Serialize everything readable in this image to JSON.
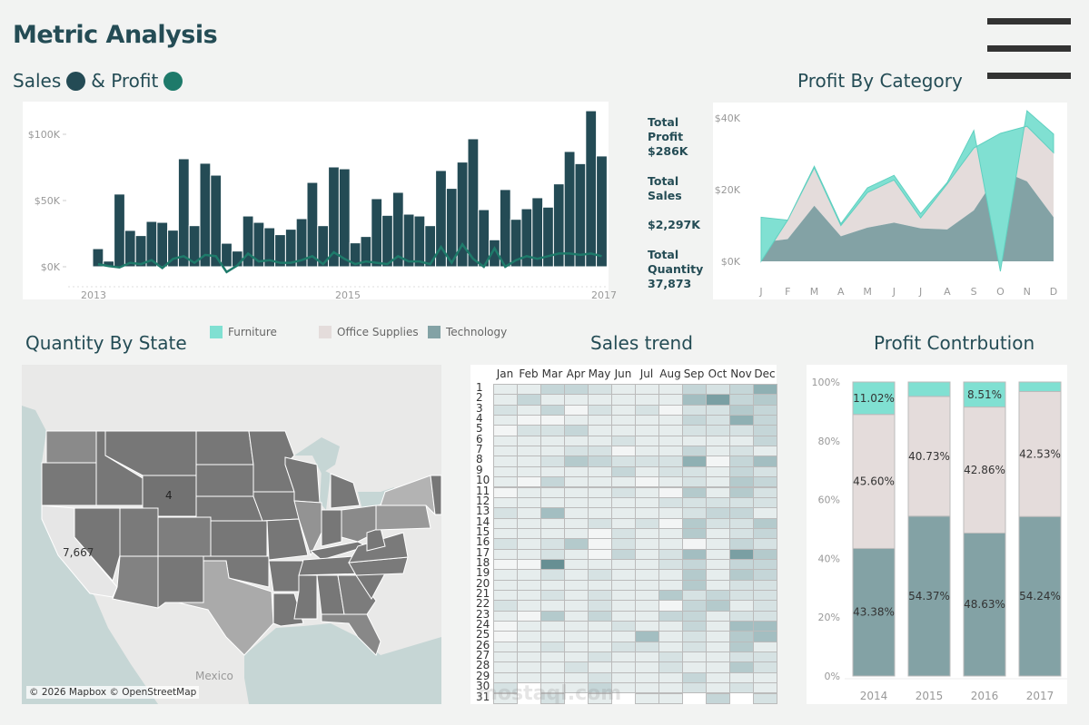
{
  "header": {
    "title": "Metric Analysis",
    "menu_icon": "hamburger-menu-icon"
  },
  "sales_profit": {
    "title_sales": "Sales",
    "title_profit": "& Profit",
    "colors": {
      "sales": "#244b55",
      "profit": "#1e7a6a"
    },
    "chart_data": {
      "type": "bar",
      "y_ticks": [
        "$100K",
        "$50K",
        "$0K"
      ],
      "x_ticks": [
        "2013",
        "2015",
        "2017"
      ],
      "ylim": [
        0,
        120
      ],
      "sales_k": [
        13.7,
        4.3,
        55,
        27.5,
        23.6,
        34.3,
        33.6,
        27.7,
        81.7,
        31.1,
        78.3,
        69.3,
        17.8,
        11.9,
        38.4,
        33.6,
        29.5,
        24.3,
        28.4,
        36.4,
        63.8,
        31.1,
        75.5,
        74.1,
        18.1,
        22.9,
        51.5,
        38.9,
        56.3,
        39.8,
        38.4,
        31.1,
        72.8,
        59.3,
        79.2,
        96.8,
        43.2,
        20.4,
        58.4,
        35.9,
        43.9,
        52.2,
        45.1,
        62.7,
        87.2,
        78,
        118,
        83.8
      ],
      "profit_k": [
        2,
        0.5,
        -0.5,
        3,
        2,
        5,
        -1,
        6,
        8,
        3,
        9,
        8,
        -4,
        1,
        10,
        4,
        5,
        3,
        3,
        5,
        8,
        2,
        11,
        6,
        2,
        4,
        3,
        2,
        8,
        4,
        4,
        2,
        15,
        3,
        17,
        6,
        0,
        14,
        0,
        5,
        8,
        6,
        8,
        10,
        10,
        9,
        10,
        8
      ]
    },
    "kpis": [
      {
        "label": "Total Profit",
        "value": "$286K"
      },
      {
        "label": "Total Sales",
        "value": "$2,297K"
      },
      {
        "label": "Total Quantity",
        "value": "37,873"
      }
    ]
  },
  "profit_by_category": {
    "title": "Profit By Category",
    "chart_data": {
      "type": "area",
      "categories": [
        "J",
        "F",
        "M",
        "A",
        "M",
        "J",
        "J",
        "A",
        "S",
        "O",
        "N",
        "D"
      ],
      "y_ticks": [
        "$40K",
        "$20K",
        "$0K"
      ],
      "ylim": [
        -4,
        44
      ],
      "series": [
        {
          "name": "Technology",
          "values": [
            5.3,
            6.2,
            15.5,
            7,
            9.4,
            10.8,
            9.2,
            8.9,
            14.2,
            25.4,
            22.3,
            12.3
          ]
        },
        {
          "name": "Office Supplies",
          "values": [
            7,
            5.3,
            10.6,
            3,
            9.8,
            11.9,
            2.9,
            12.7,
            17.4,
            10.3,
            15.4,
            18
          ]
        },
        {
          "name": "Furniture",
          "values": [
            -12.3,
            0,
            0.4,
            0.5,
            1.3,
            1.3,
            1.2,
            0.4,
            4.9,
            -38.5,
            4.3,
            5.2
          ]
        }
      ]
    }
  },
  "legend": [
    {
      "label": "Furniture",
      "color": "#80e0d2"
    },
    {
      "label": "Office Supplies",
      "color": "#e4dcdb"
    },
    {
      "label": "Technology",
      "color": "#83a2a5"
    }
  ],
  "quantity_by_state": {
    "title": "Quantity By State",
    "labels": {
      "california": "7,667",
      "wyoming": "4"
    },
    "country_label": "Mexico",
    "attribution": "© 2026 Mapbox © OpenStreetMap"
  },
  "sales_trend": {
    "title": "Sales trend",
    "months": [
      "Jan",
      "Feb",
      "Mar",
      "Apr",
      "May",
      "Jun",
      "Jul",
      "Aug",
      "Sep",
      "Oct",
      "Nov",
      "Dec"
    ],
    "days": [
      "1",
      "2",
      "3",
      "4",
      "5",
      "6",
      "7",
      "8",
      "9",
      "10",
      "11",
      "12",
      "13",
      "14",
      "15",
      "16",
      "17",
      "18",
      "19",
      "20",
      "21",
      "22",
      "23",
      "24",
      "25",
      "26",
      "27",
      "28",
      "29",
      "30",
      "31"
    ],
    "intensity_rows": [
      "113321113236",
      "131111115734",
      "213021202243",
      "100111113263",
      "022311112223",
      "111112111113",
      "111220113121",
      "112432226035",
      "111113122132",
      "103111012143",
      "011112104142",
      "111111122222",
      "215111112331",
      "111121204224",
      "111102114123",
      "212402110132",
      "112103125174",
      "008111123133",
      "112121114143",
      "111111114122",
      "112121142322",
      "211121103412",
      "104131133122",
      "011112113155",
      "011111512145",
      "112112212141",
      "111121121122",
      "111211121142",
      "111121113111",
      "2-1131112121",
      "1-2-1-11-3-2"
    ],
    "watermark": "mostaql.com"
  },
  "profit_contribution": {
    "title": "Profit Contrbution",
    "chart_data": {
      "type": "bar",
      "stacked_percent": true,
      "categories": [
        "2014",
        "2015",
        "2016",
        "2017"
      ],
      "y_ticks": [
        "100%",
        "80%",
        "60%",
        "40%",
        "20%",
        "0%"
      ],
      "series": [
        {
          "name": "Technology",
          "values": [
            43.38,
            54.37,
            48.63,
            54.24
          ],
          "labels": [
            "43.38%",
            "54.37%",
            "48.63%",
            "54.24%"
          ]
        },
        {
          "name": "Office Supplies",
          "values": [
            45.6,
            40.73,
            42.86,
            42.53
          ],
          "labels": [
            "45.60%",
            "40.73%",
            "42.86%",
            "42.53%"
          ]
        },
        {
          "name": "Furniture",
          "values": [
            11.02,
            4.9,
            8.51,
            3.23
          ],
          "labels": [
            "11.02%",
            "",
            "8.51%",
            ""
          ]
        }
      ]
    }
  }
}
